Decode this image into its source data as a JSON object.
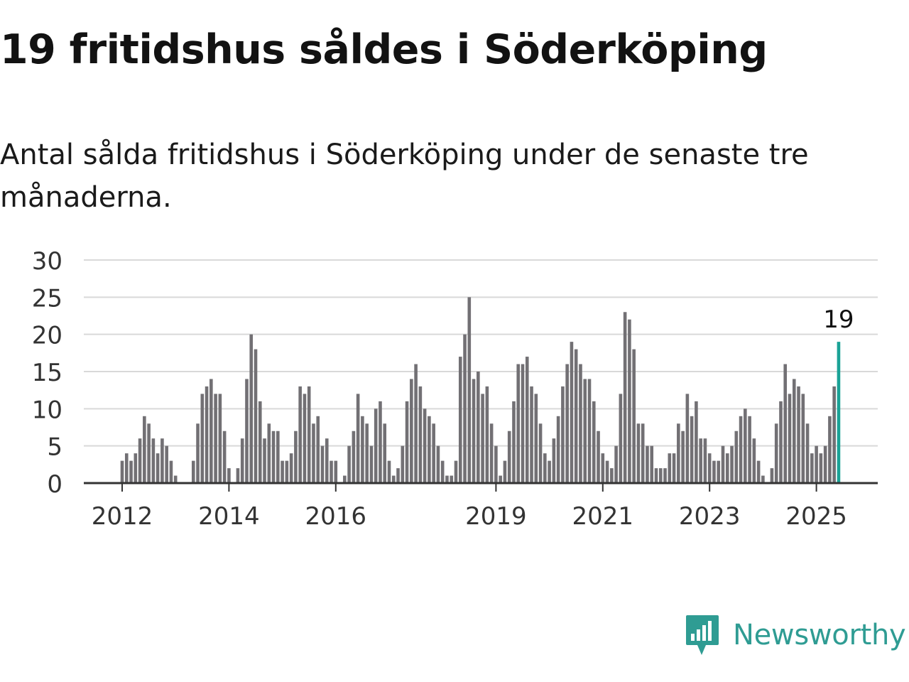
{
  "title": "19 fritidshus såldes i Söderköping",
  "subtitle": "Antal sålda fritidshus i Söderköping under de senaste tre månaderna.",
  "brand": {
    "name": "Newsworthy",
    "color": "#2f9c93",
    "icon": "newsworthy-logo-icon"
  },
  "chart_data": {
    "type": "bar",
    "start": "2011-01",
    "frequency": "monthly",
    "ylim": [
      0,
      30
    ],
    "yticks": [
      0,
      5,
      10,
      15,
      20,
      25,
      30
    ],
    "xtick_labels": [
      "2012",
      "2014",
      "2016",
      "2019",
      "2021",
      "2023",
      "2025"
    ],
    "grid": true,
    "bar_color": "#727074",
    "highlight_color": "#1aa296",
    "highlight_label": "19",
    "values": [
      0,
      0,
      0,
      0,
      0,
      0,
      0,
      0,
      0,
      0,
      0,
      0,
      3,
      4,
      3,
      4,
      6,
      9,
      8,
      6,
      4,
      6,
      5,
      3,
      1,
      0,
      0,
      0,
      3,
      8,
      12,
      13,
      14,
      12,
      12,
      7,
      2,
      0,
      2,
      6,
      14,
      20,
      18,
      11,
      6,
      8,
      7,
      7,
      3,
      3,
      4,
      7,
      13,
      12,
      13,
      8,
      9,
      5,
      6,
      3,
      3,
      0,
      1,
      5,
      7,
      12,
      9,
      8,
      5,
      10,
      11,
      8,
      3,
      1,
      2,
      5,
      11,
      14,
      16,
      13,
      10,
      9,
      8,
      5,
      3,
      1,
      1,
      3,
      17,
      20,
      25,
      14,
      15,
      12,
      13,
      8,
      5,
      1,
      3,
      7,
      11,
      16,
      16,
      17,
      13,
      12,
      8,
      4,
      3,
      6,
      9,
      13,
      16,
      19,
      18,
      16,
      14,
      14,
      11,
      7,
      4,
      3,
      2,
      5,
      12,
      23,
      22,
      18,
      8,
      8,
      5,
      5,
      2,
      2,
      2,
      4,
      4,
      8,
      7,
      12,
      9,
      11,
      6,
      6,
      4,
      3,
      3,
      5,
      4,
      5,
      7,
      9,
      10,
      9,
      6,
      3,
      1,
      0,
      2,
      8,
      11,
      16,
      12,
      14,
      13,
      12,
      8,
      4,
      5,
      4,
      5,
      9,
      13,
      19
    ]
  }
}
